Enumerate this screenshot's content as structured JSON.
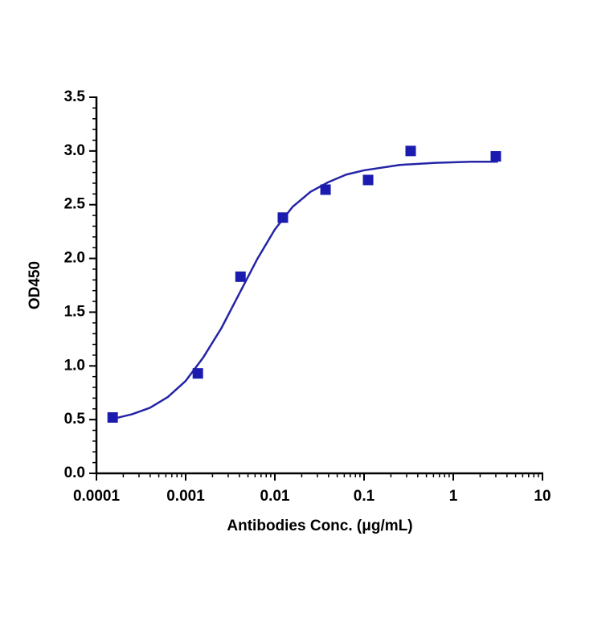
{
  "chart_data": {
    "type": "scatter",
    "xlabel": "Antibodies Conc. (μg/mL)",
    "ylabel": "OD450",
    "xscale": "log",
    "xlim": [
      0.0001,
      10
    ],
    "xticks": [
      0.0001,
      0.001,
      0.01,
      0.1,
      1,
      10
    ],
    "ylim": [
      0,
      3.5
    ],
    "yticks": [
      {
        "value": 0,
        "label": "0.0"
      },
      0.5,
      {
        "value": 1,
        "label": "1.0"
      },
      1.5,
      {
        "value": 2,
        "label": "2.0"
      },
      2.5,
      {
        "value": 3,
        "label": "3.0"
      },
      3.5
    ],
    "series": [
      {
        "type": "scatter",
        "color": "#1b1bb0",
        "x": [
          0.000152,
          0.00137,
          0.00412,
          0.0123,
          0.037,
          0.111,
          0.333,
          3
        ],
        "values": [
          0.52,
          0.93,
          1.83,
          2.38,
          2.64,
          2.73,
          3.0,
          2.95
        ]
      },
      {
        "type": "line",
        "color": "#2424a6",
        "x": [
          0.000158,
          0.000251,
          0.000398,
          0.000631,
          0.001,
          0.00158,
          0.00251,
          0.00398,
          0.00631,
          0.01,
          0.0158,
          0.0251,
          0.0398,
          0.0631,
          0.1,
          0.251,
          0.631,
          1.58,
          3.16
        ],
        "values": [
          0.51,
          0.55,
          0.61,
          0.71,
          0.86,
          1.08,
          1.35,
          1.67,
          1.99,
          2.27,
          2.48,
          2.62,
          2.71,
          2.78,
          2.82,
          2.87,
          2.89,
          2.9,
          2.9
        ]
      }
    ]
  }
}
